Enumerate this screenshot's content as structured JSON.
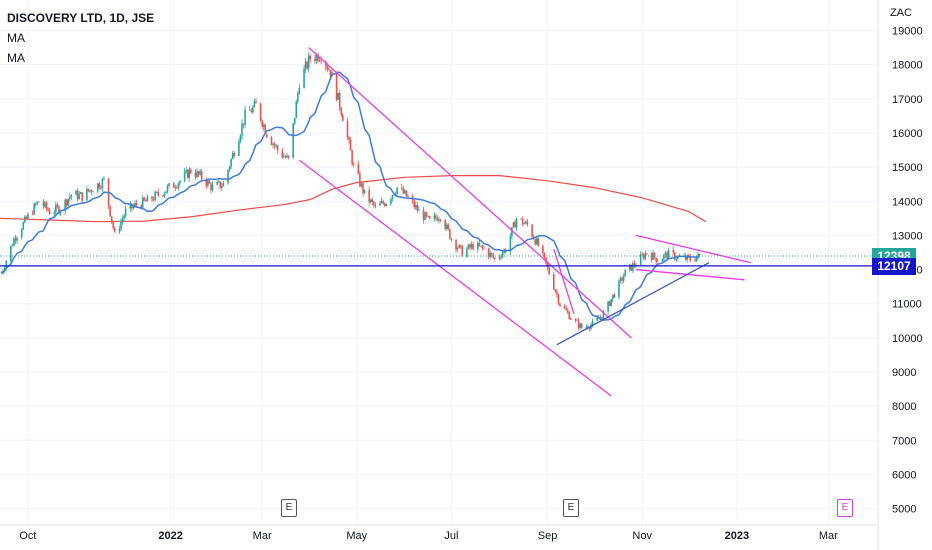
{
  "legend": {
    "title": "DISCOVERY LTD, 1D, JSE",
    "ma1": "MA",
    "ma2": "MA"
  },
  "currency": "ZAC",
  "last_price": "12398",
  "last_price_color": "#26a69a",
  "hline_price": "12107",
  "hline_color": "#1515c9",
  "earnings_marker": "E",
  "chart_data": {
    "type": "candlestick",
    "ylim": [
      4800,
      19500
    ],
    "y_ticks": [
      "5000",
      "6000",
      "7000",
      "8000",
      "9000",
      "10000",
      "11000",
      "12000",
      "13000",
      "14000",
      "15000",
      "16000",
      "17000",
      "18000",
      "19000"
    ],
    "x_ticks": [
      "Oct",
      "2022",
      "Mar",
      "May",
      "Jul",
      "Sep",
      "Nov",
      "2023",
      "Mar"
    ],
    "x_tick_dates": [
      "2021-10-01",
      "2022-01-01",
      "2022-03-01",
      "2022-05-01",
      "2022-07-01",
      "2022-09-01",
      "2022-11-01",
      "2023-01-01",
      "2023-03-01"
    ],
    "xlim": [
      "2021-09-13",
      "2023-04-02"
    ],
    "close_series": [
      [
        "2021-09-14",
        11900
      ],
      [
        "2021-09-22",
        12900
      ],
      [
        "2021-10-01",
        13550
      ],
      [
        "2021-10-08",
        14000
      ],
      [
        "2021-10-15",
        13700
      ],
      [
        "2021-10-22",
        13800
      ],
      [
        "2021-10-29",
        14200
      ],
      [
        "2021-11-05",
        14150
      ],
      [
        "2021-11-12",
        14400
      ],
      [
        "2021-11-19",
        14600
      ],
      [
        "2021-11-26",
        13000
      ],
      [
        "2021-12-03",
        13700
      ],
      [
        "2021-12-10",
        13900
      ],
      [
        "2021-12-17",
        14000
      ],
      [
        "2021-12-24",
        14200
      ],
      [
        "2021-12-31",
        14400
      ],
      [
        "2022-01-07",
        14600
      ],
      [
        "2022-01-14",
        14900
      ],
      [
        "2022-01-21",
        14700
      ],
      [
        "2022-01-28",
        14400
      ],
      [
        "2022-02-04",
        14500
      ],
      [
        "2022-02-11",
        15500
      ],
      [
        "2022-02-18",
        16500
      ],
      [
        "2022-02-25",
        16800
      ],
      [
        "2022-03-04",
        16000
      ],
      [
        "2022-03-11",
        15500
      ],
      [
        "2022-03-18",
        15200
      ],
      [
        "2022-03-25",
        17500
      ],
      [
        "2022-04-01",
        18200
      ],
      [
        "2022-04-08",
        18300
      ],
      [
        "2022-04-14",
        17800
      ],
      [
        "2022-04-22",
        16500
      ],
      [
        "2022-04-29",
        15000
      ],
      [
        "2022-05-06",
        14200
      ],
      [
        "2022-05-13",
        13800
      ],
      [
        "2022-05-20",
        14000
      ],
      [
        "2022-05-27",
        14400
      ],
      [
        "2022-06-03",
        14100
      ],
      [
        "2022-06-10",
        13700
      ],
      [
        "2022-06-17",
        13400
      ],
      [
        "2022-06-24",
        13600
      ],
      [
        "2022-07-01",
        12900
      ],
      [
        "2022-07-08",
        12500
      ],
      [
        "2022-07-15",
        12700
      ],
      [
        "2022-07-22",
        12600
      ],
      [
        "2022-07-29",
        12300
      ],
      [
        "2022-08-05",
        12600
      ],
      [
        "2022-08-12",
        13500
      ],
      [
        "2022-08-19",
        13300
      ],
      [
        "2022-08-26",
        12700
      ],
      [
        "2022-09-02",
        11900
      ],
      [
        "2022-09-09",
        11000
      ],
      [
        "2022-09-16",
        10600
      ],
      [
        "2022-09-23",
        10300
      ],
      [
        "2022-09-30",
        10400
      ],
      [
        "2022-10-07",
        10700
      ],
      [
        "2022-10-14",
        11300
      ],
      [
        "2022-10-21",
        11900
      ],
      [
        "2022-10-28",
        12200
      ],
      [
        "2022-11-04",
        12500
      ],
      [
        "2022-11-11",
        12300
      ],
      [
        "2022-11-18",
        12450
      ],
      [
        "2022-11-25",
        12350
      ],
      [
        "2022-12-02",
        12300
      ],
      [
        "2022-12-09",
        12398
      ]
    ],
    "ma200": [
      [
        "2021-09-13",
        13500
      ],
      [
        "2021-10-15",
        13450
      ],
      [
        "2021-11-15",
        13400
      ],
      [
        "2021-12-15",
        13420
      ],
      [
        "2022-01-15",
        13550
      ],
      [
        "2022-02-15",
        13750
      ],
      [
        "2022-03-15",
        13900
      ],
      [
        "2022-04-01",
        14050
      ],
      [
        "2022-04-15",
        14350
      ],
      [
        "2022-05-01",
        14550
      ],
      [
        "2022-06-01",
        14700
      ],
      [
        "2022-07-01",
        14750
      ],
      [
        "2022-08-01",
        14750
      ],
      [
        "2022-09-01",
        14600
      ],
      [
        "2022-10-01",
        14400
      ],
      [
        "2022-11-01",
        14100
      ],
      [
        "2022-12-01",
        13700
      ],
      [
        "2022-12-12",
        13400
      ]
    ],
    "trendlines": [
      {
        "color": "#e83ce8",
        "points": [
          [
            "2022-03-31",
            18500
          ],
          [
            "2022-10-25",
            10000
          ]
        ]
      },
      {
        "color": "#e83ce8",
        "points": [
          [
            "2022-03-25",
            15200
          ],
          [
            "2022-10-12",
            8300
          ]
        ]
      },
      {
        "color": "#e83ce8",
        "points": [
          [
            "2022-09-05",
            12600
          ],
          [
            "2022-09-18",
            10700
          ]
        ]
      },
      {
        "color": "#e83ce8",
        "points": [
          [
            "2022-10-28",
            13000
          ],
          [
            "2023-01-10",
            12200
          ]
        ]
      },
      {
        "color": "#e83ce8",
        "points": [
          [
            "2022-10-28",
            12000
          ],
          [
            "2023-01-06",
            11700
          ]
        ]
      },
      {
        "color": "#3b57c4",
        "points": [
          [
            "2022-09-07",
            9800
          ],
          [
            "2022-12-14",
            12200
          ]
        ]
      }
    ]
  }
}
